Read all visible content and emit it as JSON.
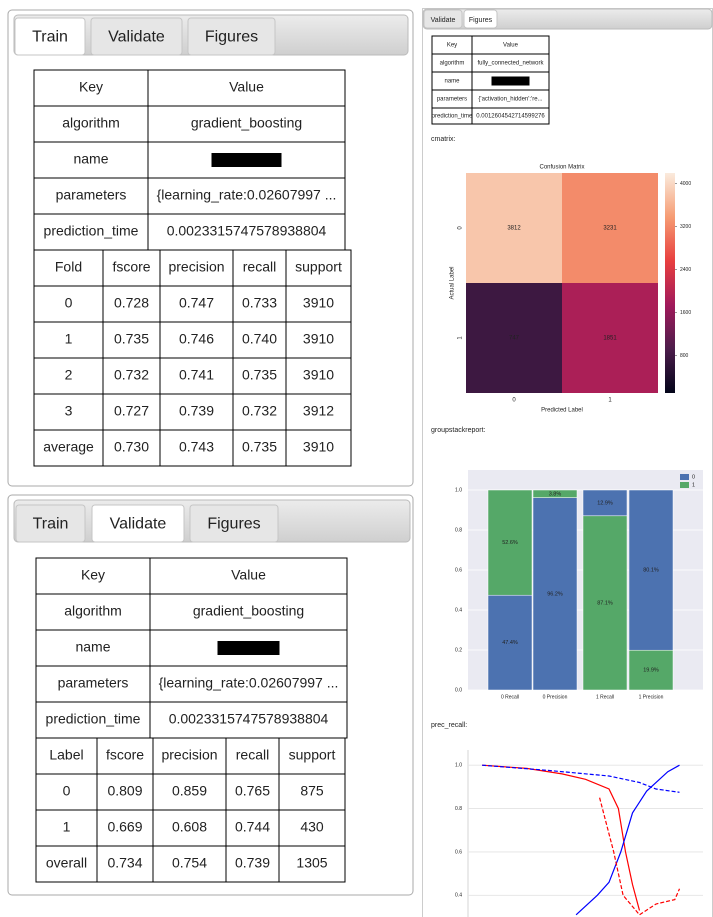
{
  "train_panel": {
    "tabs": [
      "Train",
      "Validate",
      "Figures"
    ],
    "active_tab": 0,
    "info": {
      "header": [
        "Key",
        "Value"
      ],
      "rows": [
        {
          "key": "algorithm",
          "value": "gradient_boosting"
        },
        {
          "key": "name"
        },
        {
          "key": "parameters",
          "value": "{learning_rate:0.02607997 ..."
        },
        {
          "key": "prediction_time",
          "value": "0.0023315747578938804"
        }
      ]
    },
    "metrics": {
      "header": [
        "Fold",
        "fscore",
        "precision",
        "recall",
        "support"
      ],
      "rows": [
        [
          "0",
          "0.728",
          "0.747",
          "0.733",
          "3910"
        ],
        [
          "1",
          "0.735",
          "0.746",
          "0.740",
          "3910"
        ],
        [
          "2",
          "0.732",
          "0.741",
          "0.735",
          "3910"
        ],
        [
          "3",
          "0.727",
          "0.739",
          "0.732",
          "3912"
        ],
        [
          "average",
          "0.730",
          "0.743",
          "0.735",
          "3910"
        ]
      ]
    }
  },
  "validate_panel": {
    "tabs": [
      "Train",
      "Validate",
      "Figures"
    ],
    "active_tab": 1,
    "info": {
      "header": [
        "Key",
        "Value"
      ],
      "rows": [
        {
          "key": "algorithm",
          "value": "gradient_boosting"
        },
        {
          "key": "name"
        },
        {
          "key": "parameters",
          "value": "{learning_rate:0.02607997 ..."
        },
        {
          "key": "prediction_time",
          "value": "0.0023315747578938804"
        }
      ]
    },
    "metrics": {
      "header": [
        "Label",
        "fscore",
        "precision",
        "recall",
        "support"
      ],
      "rows": [
        [
          "0",
          "0.809",
          "0.859",
          "0.765",
          "875"
        ],
        [
          "1",
          "0.669",
          "0.608",
          "0.744",
          "430"
        ],
        [
          "overall",
          "0.734",
          "0.754",
          "0.739",
          "1305"
        ]
      ]
    }
  },
  "figures_panel": {
    "tabs": [
      "Validate",
      "Figures"
    ],
    "active_tab": 1,
    "info": {
      "header": [
        "Key",
        "Value"
      ],
      "rows": [
        {
          "key": "algorithm",
          "value": "fully_connected_network"
        },
        {
          "key": "name"
        },
        {
          "key": "parameters",
          "value": "{'activation_hidden':'re..."
        },
        {
          "key": "prediction_time",
          "value": "0.0012604542714599276"
        }
      ]
    },
    "sections": [
      "cmatrix:",
      "groupstackreport:",
      "prec_recall:"
    ]
  },
  "chart_data": [
    {
      "type": "heatmap",
      "title": "Confusion Matrix",
      "x_label": "Predicted Label",
      "y_label": "Actual Label",
      "x_categories": [
        "0",
        "1"
      ],
      "y_categories": [
        "0",
        "1"
      ],
      "values": [
        [
          3812,
          3231
        ],
        [
          747,
          1851
        ]
      ],
      "zlim": [
        100,
        4200
      ],
      "zticks": [
        800,
        1600,
        2400,
        3200,
        4000
      ],
      "colormap": [
        "#03051a",
        "#4c1d4b",
        "#a11a5b",
        "#e83f3f",
        "#f69c73",
        "#faebdd"
      ]
    },
    {
      "type": "bar",
      "stacked": true,
      "categories": [
        "0 Recall",
        "0 Precision",
        "1 Recall",
        "1 Precision"
      ],
      "series": [
        {
          "name": "0",
          "color": "#4c72b0",
          "values": [
            0.474,
            0.962,
            0.129,
            0.801
          ],
          "value_labels": [
            "47.4%",
            "96.2%",
            "12.9%",
            "80.1%"
          ]
        },
        {
          "name": "1",
          "color": "#55a868",
          "values": [
            0.526,
            0.038,
            0.871,
            0.199
          ],
          "value_labels": [
            "52.6%",
            "3.8%",
            "87.1%",
            "19.9%"
          ]
        }
      ],
      "ylim": [
        0,
        1.1
      ],
      "yticks": [
        {
          "value": 0,
          "label": "0.0"
        },
        0.2,
        0.4,
        0.6,
        0.8,
        {
          "value": 1,
          "label": "1.0"
        }
      ],
      "legend": "upper right",
      "background": "#eaeaf2"
    },
    {
      "type": "line",
      "xlim": [
        0,
        1
      ],
      "ylim": [
        0.3,
        1.07
      ],
      "yticks": [
        0.4,
        0.6,
        0.8,
        {
          "value": 1,
          "label": "1.0"
        }
      ],
      "grid": true,
      "series": [
        {
          "color": "#ff0000",
          "dashed": false,
          "x": [
            0.06,
            0.25,
            0.4,
            0.5,
            0.6,
            0.64,
            0.67,
            0.7,
            0.73
          ],
          "values": [
            1.0,
            0.985,
            0.96,
            0.935,
            0.89,
            0.8,
            0.6,
            0.45,
            0.33
          ]
        },
        {
          "color": "#0000ff",
          "dashed": false,
          "x": [
            0.46,
            0.55,
            0.6,
            0.65,
            0.7,
            0.76,
            0.85,
            0.9
          ],
          "values": [
            0.31,
            0.4,
            0.46,
            0.6,
            0.78,
            0.88,
            0.97,
            1.0
          ]
        },
        {
          "color": "#0000ff",
          "dashed": true,
          "x": [
            0.06,
            0.35,
            0.6,
            0.73,
            0.8,
            0.9
          ],
          "values": [
            1.0,
            0.975,
            0.95,
            0.92,
            0.89,
            0.875
          ]
        },
        {
          "color": "#ff0000",
          "dashed": true,
          "x": [
            0.56,
            0.62,
            0.66,
            0.73,
            0.8,
            0.88,
            0.9
          ],
          "values": [
            0.85,
            0.6,
            0.4,
            0.31,
            0.36,
            0.38,
            0.43
          ]
        }
      ]
    }
  ]
}
